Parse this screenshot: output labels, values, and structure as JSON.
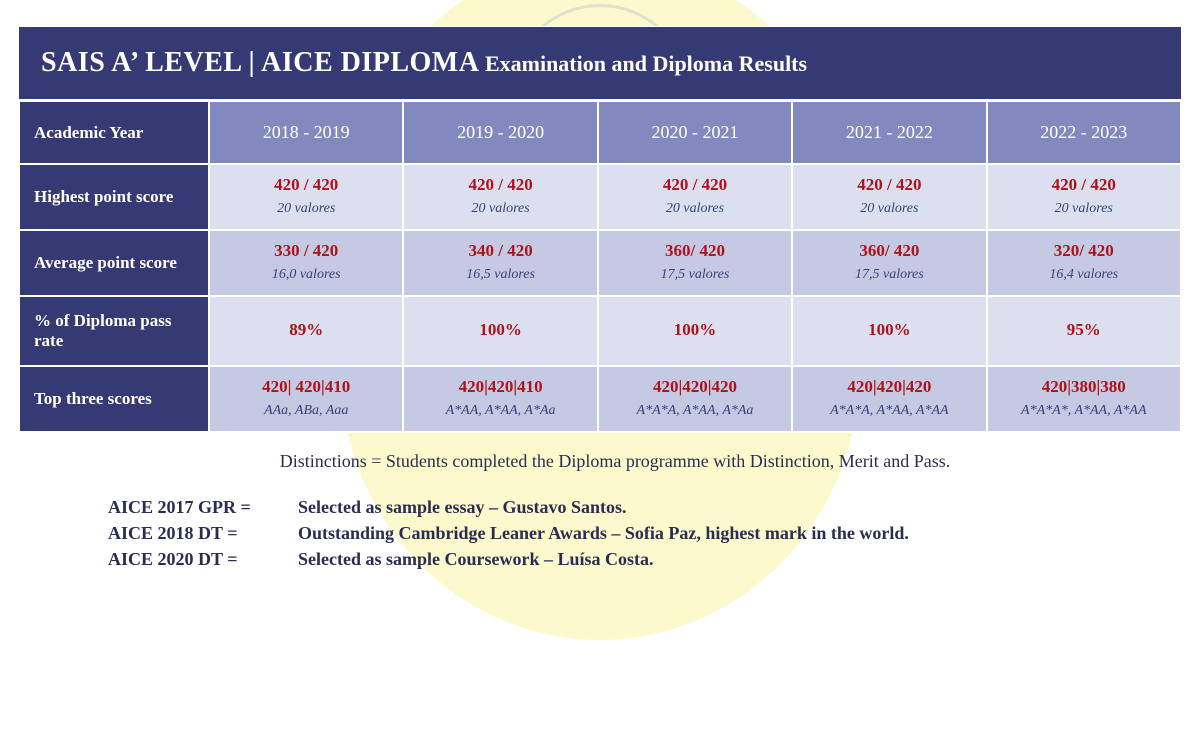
{
  "title": {
    "main": "SAIS A’ LEVEL  |  AICE DIPLOMA",
    "sub": " Examination and Diploma Results"
  },
  "columns_header": "Academic Year",
  "years": [
    "2018 - 2019",
    "2019 - 2020",
    "2020 - 2021",
    "2021 - 2022",
    "2022 - 2023"
  ],
  "rows": {
    "highest": {
      "label": "Highest point score",
      "vals": [
        "420 / 420",
        "420 / 420",
        "420 / 420",
        "420 / 420",
        "420 / 420"
      ],
      "subs": [
        "20 valores",
        "20 valores",
        "20 valores",
        "20 valores",
        "20 valores"
      ]
    },
    "average": {
      "label": "Average point score",
      "vals": [
        "330 / 420",
        "340 / 420",
        "360/ 420",
        "360/ 420",
        "320/ 420"
      ],
      "subs": [
        "16,0 valores",
        "16,5 valores",
        "17,5 valores",
        "17,5 valores",
        "16,4 valores"
      ]
    },
    "pass": {
      "label": "% of Diploma pass rate",
      "vals": [
        "89%",
        "100%",
        "100%",
        "100%",
        "95%"
      ]
    },
    "top3": {
      "label": "Top three scores",
      "vals": [
        "420| 420|410",
        "420|420|410",
        "420|420|420",
        "420|420|420",
        "420|380|380"
      ],
      "subs": [
        "AAa, ABa, Aaa",
        "A*AA, A*AA, A*Aa",
        "A*A*A, A*AA, A*Aa",
        "A*A*A, A*AA, A*AA",
        "A*A*A*, A*AA, A*AA"
      ]
    }
  },
  "distinctions": "Distinctions = Students completed the Diploma programme with Distinction, Merit and Pass.",
  "notes": [
    {
      "key": "AICE 2017 GPR  =",
      "val": "Selected as sample essay – Gustavo Santos."
    },
    {
      "key": "AICE 2018 DT  =",
      "val": "Outstanding Cambridge Leaner Awards – Sofia Paz, highest mark in the world."
    },
    {
      "key": "AICE 2020 DT  =",
      "val": "Selected as sample Coursework – Luísa Costa."
    }
  ],
  "colors": {
    "header_bg": "#363a74",
    "year_row_bg": "#8189bf",
    "row_light": "#dcdff0",
    "row_mid": "#c5c9e4",
    "value_red": "#b01116",
    "text_navy": "#2b2c54",
    "bg_yellow": "#fcf8c8"
  }
}
